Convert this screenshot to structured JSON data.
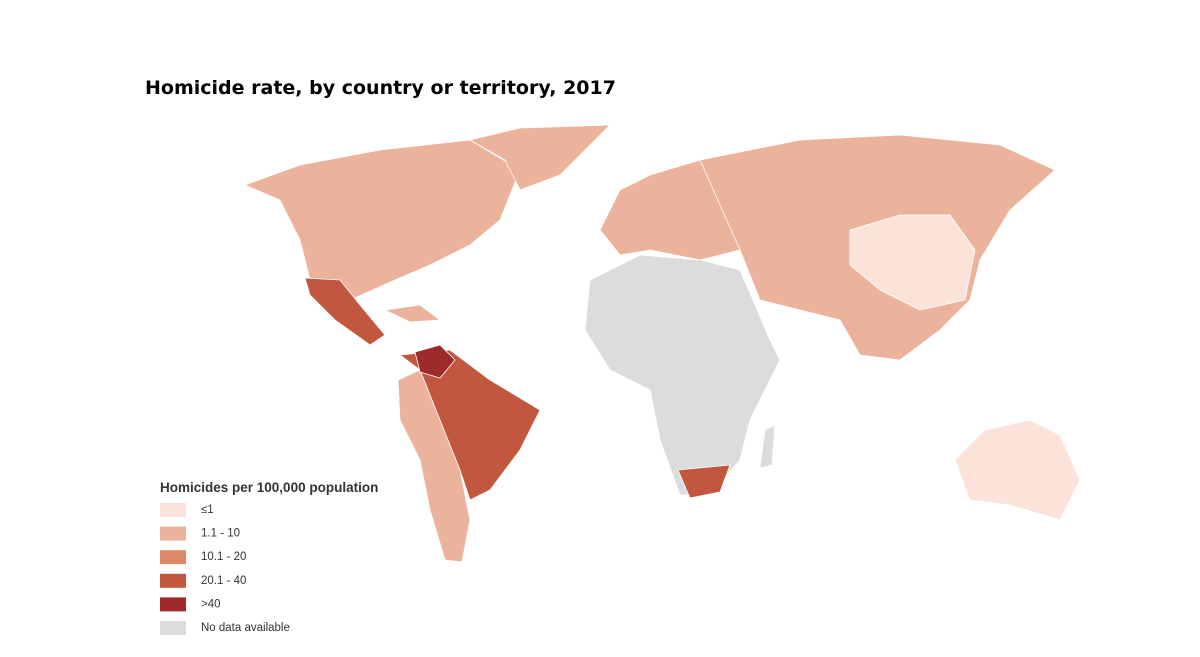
{
  "title": "Homicide rate, by country or territory, 2017",
  "legend": {
    "title": "Homicides per 100,000 population",
    "items": [
      {
        "label": "≤1",
        "color": "#fbe3da"
      },
      {
        "label": "1.1 - 10",
        "color": "#ebb39b"
      },
      {
        "label": "10.1 - 20",
        "color": "#dc8a68"
      },
      {
        "label": "20.1 - 40",
        "color": "#c2573f"
      },
      {
        "label": ">40",
        "color": "#9e2a2b"
      },
      {
        "label": "No data available",
        "color": "#dcdcdc"
      }
    ]
  }
}
